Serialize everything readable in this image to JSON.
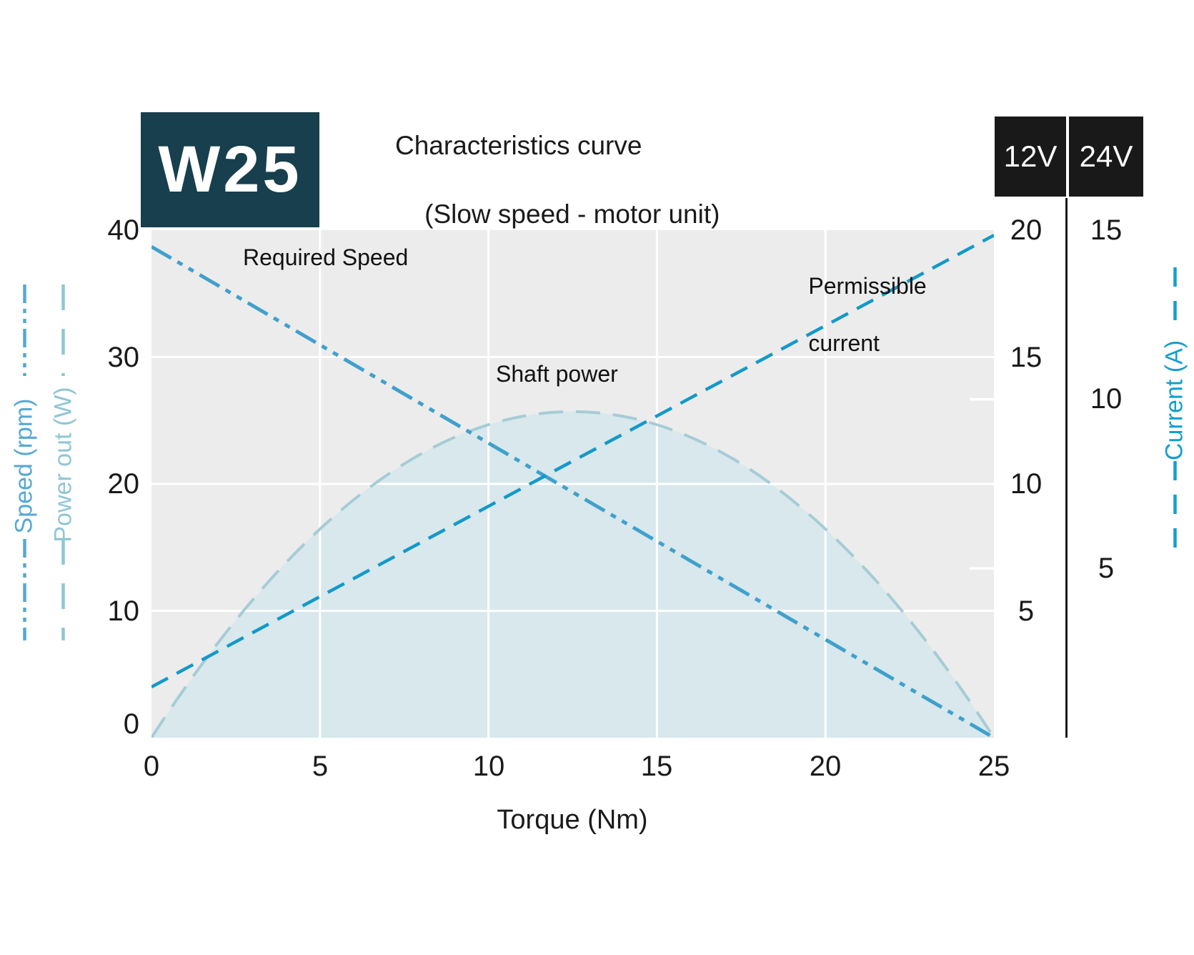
{
  "header": {
    "badge": "W25",
    "badge_bg": "#173f4d",
    "title_line1": "Characteristics curve",
    "title_line2": "(Slow speed - motor unit)",
    "voltage_box_bg": "#191919"
  },
  "chart_data": {
    "type": "line",
    "title": "Characteristics curve (Slow speed - motor unit)",
    "badge": "W25",
    "xlabel": "Torque (Nm)",
    "xlim": [
      0,
      25
    ],
    "x_ticks": [
      0,
      5,
      10,
      15,
      20,
      25
    ],
    "grid_x": [
      5,
      10,
      15,
      20
    ],
    "grid_y": [
      10,
      20,
      30
    ],
    "grid_color": "#ffffff",
    "plot_bg": "#ececec",
    "left_axis": {
      "labels": [
        "Speed (rpm)",
        "Power out (W)"
      ],
      "ticks": [
        40,
        30,
        20,
        10,
        0
      ],
      "lim": [
        0,
        40
      ]
    },
    "right_axis_12V": {
      "header": "12V",
      "unit": "A",
      "ticks": [
        20,
        15,
        10,
        5
      ],
      "amps_per_left_unit": 0.5
    },
    "right_axis_24V": {
      "header": "24V",
      "unit": "A",
      "ticks": [
        15,
        10,
        5
      ],
      "side_tick_values": [
        10,
        5
      ],
      "full_scale_amps": 15
    },
    "right_axis_label": "Current (A)",
    "series": [
      {
        "name": "Required Speed",
        "style": "dash-dot-dot",
        "color": "#3fa0cc",
        "axis": "left",
        "points": [
          [
            0,
            38.7
          ],
          [
            25,
            0
          ]
        ]
      },
      {
        "name": "Permissible current",
        "style": "dashed",
        "color": "#1399c9",
        "axis": "12V",
        "points_amps": [
          [
            0,
            2.0
          ],
          [
            25,
            19.8
          ]
        ]
      },
      {
        "name": "Shaft power",
        "style": "area-dashed-border",
        "fill": "#d8e8ec",
        "border": "#a6ccd6",
        "axis": "left",
        "peak": [
          12.5,
          25.7
        ],
        "points": [
          [
            0,
            0
          ],
          [
            2.5,
            9.3
          ],
          [
            5,
            16.4
          ],
          [
            7.5,
            21.6
          ],
          [
            10,
            24.7
          ],
          [
            12.5,
            25.7
          ],
          [
            15,
            24.7
          ],
          [
            17.5,
            21.6
          ],
          [
            20,
            16.4
          ],
          [
            22.5,
            9.3
          ],
          [
            25,
            0
          ]
        ]
      }
    ],
    "annotations": {
      "required_speed": "Required Speed",
      "permissible_line1": "Permissible",
      "permissible_line2": "current",
      "shaft_power": "Shaft power"
    },
    "legend": {
      "speed": {
        "label": "Speed (rpm)",
        "color": "#55a9d2"
      },
      "power": {
        "label": "Power out (W)",
        "color": "#8fc6d3"
      },
      "current": {
        "label": "Current (A)",
        "color": "#149ecd"
      }
    }
  }
}
